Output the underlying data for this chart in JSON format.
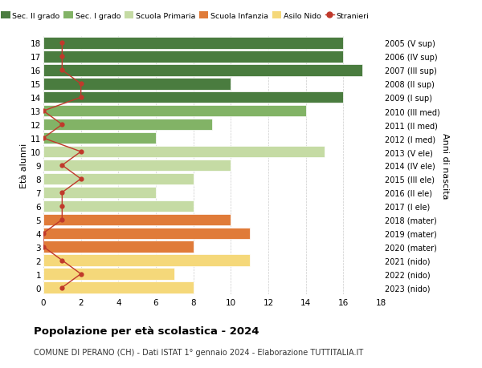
{
  "ages": [
    18,
    17,
    16,
    15,
    14,
    13,
    12,
    11,
    10,
    9,
    8,
    7,
    6,
    5,
    4,
    3,
    2,
    1,
    0
  ],
  "right_labels": [
    "2005 (V sup)",
    "2006 (IV sup)",
    "2007 (III sup)",
    "2008 (II sup)",
    "2009 (I sup)",
    "2010 (III med)",
    "2011 (II med)",
    "2012 (I med)",
    "2013 (V ele)",
    "2014 (IV ele)",
    "2015 (III ele)",
    "2016 (II ele)",
    "2017 (I ele)",
    "2018 (mater)",
    "2019 (mater)",
    "2020 (mater)",
    "2021 (nido)",
    "2022 (nido)",
    "2023 (nido)"
  ],
  "bar_values": [
    16,
    16,
    17,
    10,
    16,
    14,
    9,
    6,
    15,
    10,
    8,
    6,
    8,
    10,
    11,
    8,
    11,
    7,
    8
  ],
  "bar_colors": [
    "#4a7c3f",
    "#4a7c3f",
    "#4a7c3f",
    "#4a7c3f",
    "#4a7c3f",
    "#82b366",
    "#82b366",
    "#82b366",
    "#c5dba4",
    "#c5dba4",
    "#c5dba4",
    "#c5dba4",
    "#c5dba4",
    "#e07b39",
    "#e07b39",
    "#e07b39",
    "#f5d87a",
    "#f5d87a",
    "#f5d87a"
  ],
  "stranieri_values": [
    1,
    1,
    1,
    2,
    2,
    0,
    1,
    0,
    2,
    1,
    2,
    1,
    1,
    1,
    0,
    0,
    1,
    2,
    1
  ],
  "stranieri_color": "#c0392b",
  "legend_items": [
    {
      "label": "Sec. II grado",
      "color": "#4a7c3f"
    },
    {
      "label": "Sec. I grado",
      "color": "#82b366"
    },
    {
      "label": "Scuola Primaria",
      "color": "#c5dba4"
    },
    {
      "label": "Scuola Infanzia",
      "color": "#e07b39"
    },
    {
      "label": "Asilo Nido",
      "color": "#f5d87a"
    },
    {
      "label": "Stranieri",
      "color": "#c0392b"
    }
  ],
  "left_ylabel": "Età alunni",
  "right_ylabel": "Anni di nascita",
  "xlim": [
    0,
    18
  ],
  "title": "Popolazione per età scolastica - 2024",
  "subtitle": "COMUNE DI PERANO (CH) - Dati ISTAT 1° gennaio 2024 - Elaborazione TUTTITALIA.IT",
  "background_color": "#ffffff",
  "grid_color": "#cccccc"
}
